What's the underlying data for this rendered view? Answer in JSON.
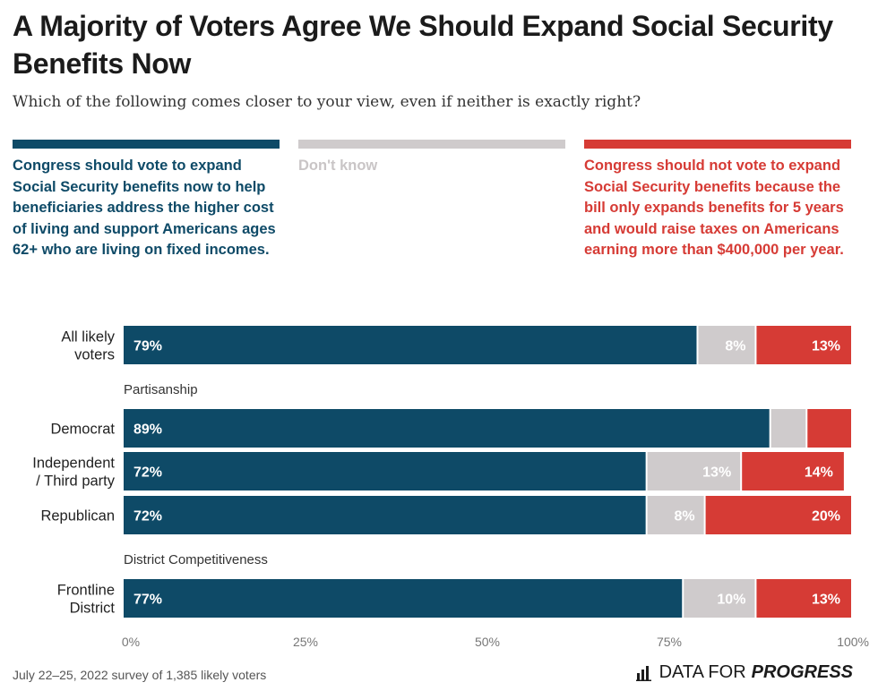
{
  "header": {
    "title": "A Majority of Voters Agree We Should Expand Social Security Benefits Now",
    "subtitle": "Which of the following comes closer to your view, even if neither is exactly right?"
  },
  "legend": [
    {
      "label": "Congress should vote to expand Social Security benefits now to help beneficiaries address the higher cost of living and support Americans ages 62+ who are living on fixed incomes.",
      "color": "#0e4a67"
    },
    {
      "label": "Don't know",
      "color": "#cfcbcc"
    },
    {
      "label": "Congress should not vote to expand Social Security benefits because the bill only expands benefits for 5 years and would raise taxes on Americans earning more than $400,000 per year.",
      "color": "#d63b35"
    }
  ],
  "chart_data": {
    "type": "bar",
    "orientation": "horizontal",
    "stacked": true,
    "series_names": [
      "Expand now",
      "Don't know",
      "Should not expand"
    ],
    "colors": [
      "#0e4a67",
      "#cfcbcc",
      "#d63b35"
    ],
    "xlim": [
      0,
      100
    ],
    "ticks": [
      0,
      25,
      50,
      75,
      100
    ],
    "tick_labels": [
      "0%",
      "25%",
      "50%",
      "75%",
      "100%"
    ],
    "rows": [
      {
        "label": [
          "All likely",
          "voters"
        ],
        "values": [
          79,
          8,
          13
        ],
        "labels": [
          "79%",
          "8%",
          "13%"
        ]
      },
      {
        "section": "Partisanship"
      },
      {
        "label": [
          "Democrat"
        ],
        "values": [
          89,
          5,
          6
        ],
        "labels": [
          "89%",
          "",
          ""
        ]
      },
      {
        "label": [
          "Independent",
          "/ Third party"
        ],
        "values": [
          72,
          13,
          14
        ],
        "labels": [
          "72%",
          "13%",
          "14%"
        ]
      },
      {
        "label": [
          "Republican"
        ],
        "values": [
          72,
          8,
          20
        ],
        "labels": [
          "72%",
          "8%",
          "20%"
        ]
      },
      {
        "section": "District Competitiveness"
      },
      {
        "label": [
          "Frontline",
          "District"
        ],
        "values": [
          77,
          10,
          13
        ],
        "labels": [
          "77%",
          "10%",
          "13%"
        ]
      }
    ]
  },
  "footer": {
    "source": "July 22–25, 2022 survey of 1,385 likely voters",
    "brand_regular": "DATA FOR",
    "brand_bold": "PROGRESS",
    "brand_icon": "bar-chart-logo-icon"
  }
}
